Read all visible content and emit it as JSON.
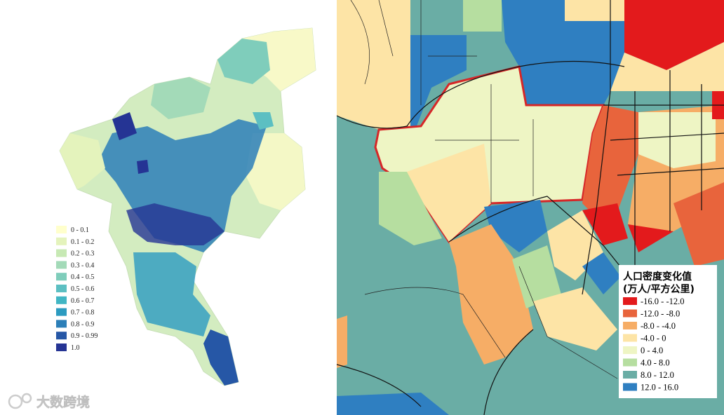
{
  "left_map": {
    "legend": [
      {
        "label": "0 - 0.1",
        "color": "#ffffcc"
      },
      {
        "label": "0.1 - 0.2",
        "color": "#e4f3bc"
      },
      {
        "label": "0.2 - 0.3",
        "color": "#c7e9b4"
      },
      {
        "label": "0.3 - 0.4",
        "color": "#a3dab8"
      },
      {
        "label": "0.4 - 0.5",
        "color": "#7fcdbb"
      },
      {
        "label": "0.5 - 0.6",
        "color": "#5cbfc2"
      },
      {
        "label": "0.6 - 0.7",
        "color": "#41b6c4"
      },
      {
        "label": "0.7 - 0.8",
        "color": "#2c9bc0"
      },
      {
        "label": "0.8 - 0.9",
        "color": "#2c7fb8"
      },
      {
        "label": "0.9 - 0.99",
        "color": "#2657a6"
      },
      {
        "label": "1.0",
        "color": "#253494"
      }
    ]
  },
  "right_map": {
    "legend_title": [
      "人口密度变化值",
      "(万人/平方公里)"
    ],
    "legend": [
      {
        "label": "-16.0 - -12.0",
        "color": "#e31a1c"
      },
      {
        "label": "-12.0 - -8.0",
        "color": "#e8643c"
      },
      {
        "label": "-8.0 - -4.0",
        "color": "#f6ad66"
      },
      {
        "label": "-4.0 - 0",
        "color": "#fde4a6"
      },
      {
        "label": "0 - 4.0",
        "color": "#eef5c4"
      },
      {
        "label": "4.0 - 8.0",
        "color": "#b6dea0"
      },
      {
        "label": "8.0 - 12.0",
        "color": "#6aada5"
      },
      {
        "label": "12.0 - 16.0",
        "color": "#2f7fc1"
      }
    ]
  },
  "watermark": "大数跨境"
}
